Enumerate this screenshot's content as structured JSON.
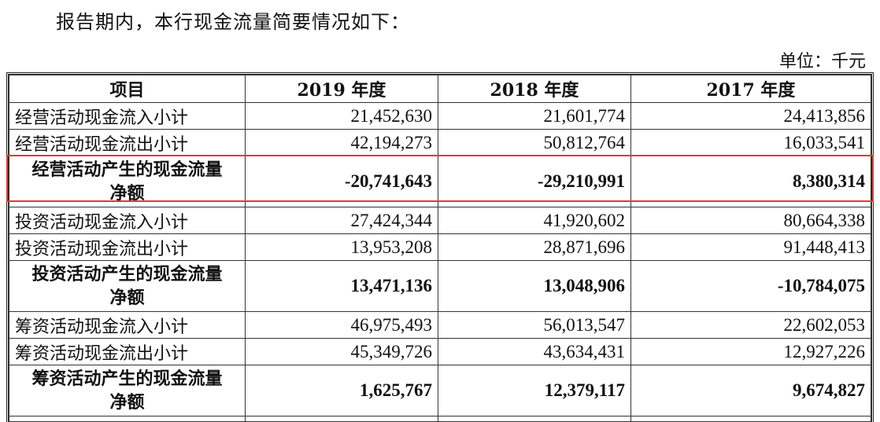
{
  "intro_text": "报告期内，本行现金流量简要情况如下：",
  "unit_text": "单位：千元",
  "columns": [
    "项目",
    "2019 年度",
    "2018 年度",
    "2017 年度"
  ],
  "rows": [
    {
      "label": "经营活动现金流入小计",
      "v2019": "21,452,630",
      "v2018": "21,601,774",
      "v2017": "24,413,856"
    },
    {
      "label": "经营活动现金流出小计",
      "v2019": "42,194,273",
      "v2018": "50,812,764",
      "v2017": "16,033,541"
    },
    {
      "label_line1": "经营活动产生的现金流量",
      "label_line2": "净额",
      "v2019": "-20,741,643",
      "v2018": "-29,210,991",
      "v2017": "8,380,314"
    },
    {
      "label": "投资活动现金流入小计",
      "v2019": "27,424,344",
      "v2018": "41,920,602",
      "v2017": "80,664,338"
    },
    {
      "label": "投资活动现金流出小计",
      "v2019": "13,953,208",
      "v2018": "28,871,696",
      "v2017": "91,448,413"
    },
    {
      "label_line1": "投资活动产生的现金流量",
      "label_line2": "净额",
      "v2019": "13,471,136",
      "v2018": "13,048,906",
      "v2017": "-10,784,075"
    },
    {
      "label": "筹资活动现金流入小计",
      "v2019": "46,975,493",
      "v2018": "56,013,547",
      "v2017": "22,602,053"
    },
    {
      "label": "筹资活动现金流出小计",
      "v2019": "45,349,726",
      "v2018": "43,634,431",
      "v2017": "12,927,226"
    },
    {
      "label_line1": "筹资活动产生的现金流量",
      "label_line2": "净额",
      "v2019": "1,625,767",
      "v2018": "12,379,117",
      "v2017": "9,674,827"
    }
  ],
  "highlight_color": "#e03a35"
}
